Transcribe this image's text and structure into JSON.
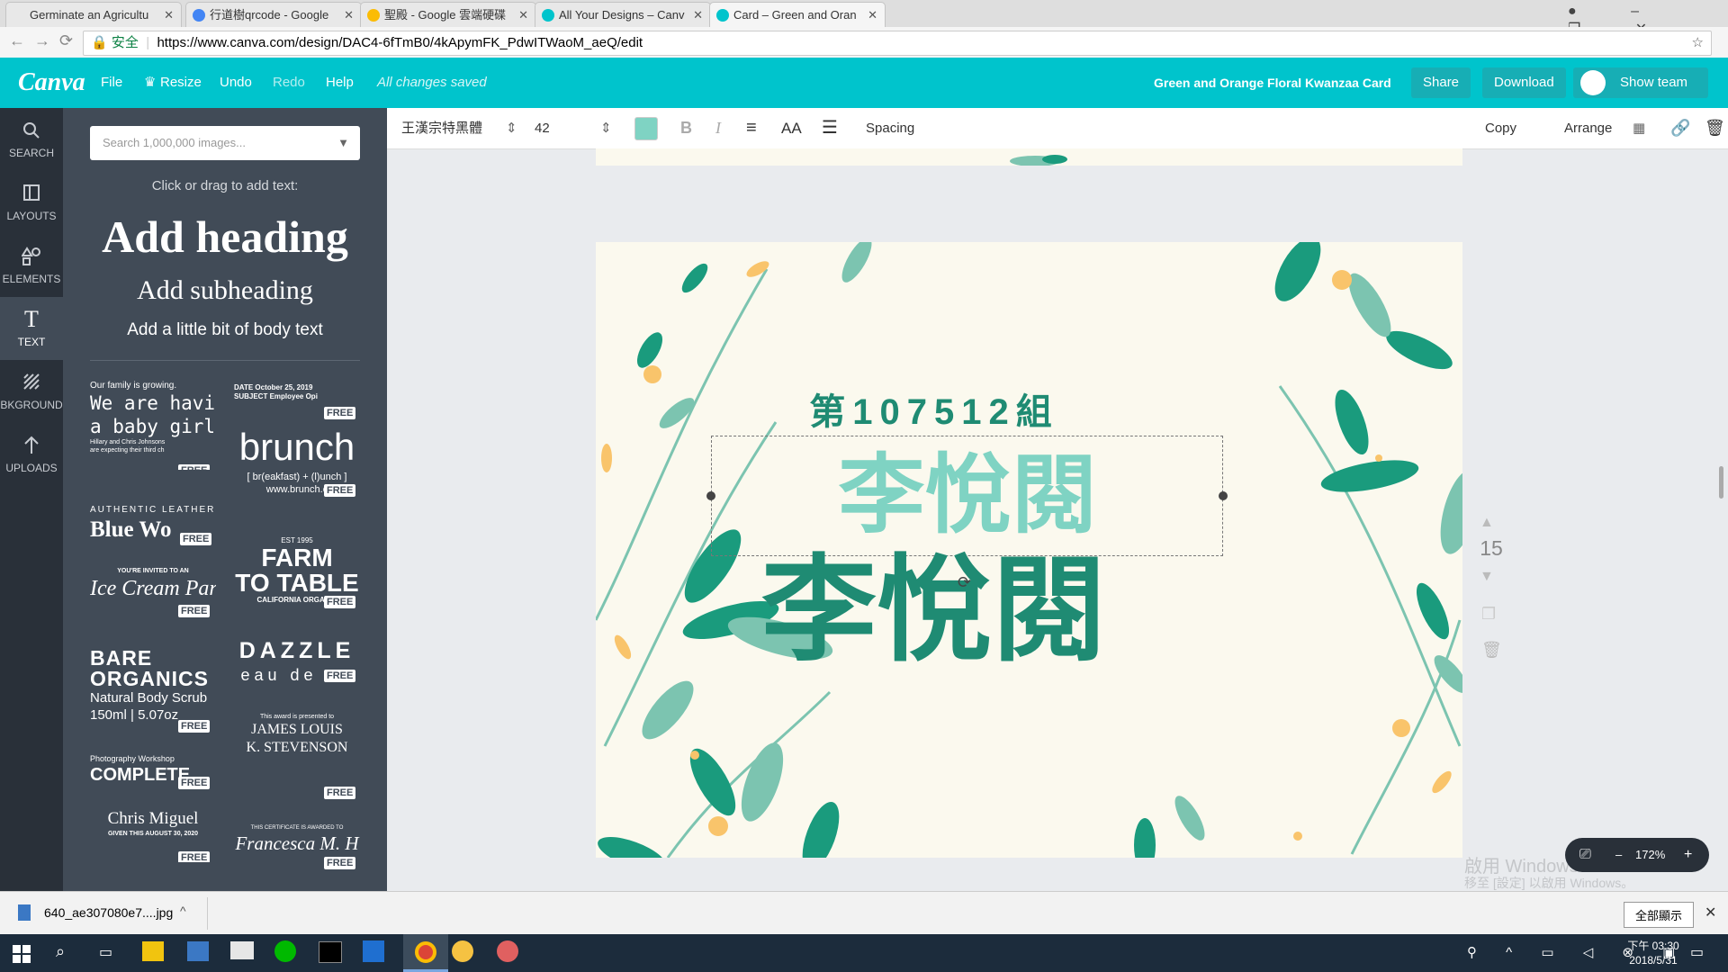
{
  "tabs": [
    "Germinate an Agricultu",
    "行道樹qrcode - Google",
    "聖殿 - Google 雲端硬碟",
    "All Your Designs – Canv",
    "Card – Green and Oran"
  ],
  "address": {
    "secure": "安全",
    "url": "https://www.canva.com/design/DAC4-6fTmB0/4kApymFK_PdwITWaoM_aeQ/edit"
  },
  "header": {
    "logo": "Canva",
    "menu": [
      "File",
      "Resize",
      "Undo",
      "Redo",
      "Help"
    ],
    "status": "All changes saved",
    "design_title": "Green and Orange Floral Kwanzaa Card",
    "share": "Share",
    "download": "Download",
    "show_team": "Show team"
  },
  "toolbar": {
    "font": "王漢宗特黑體",
    "size": "42",
    "spacing": "Spacing",
    "copy": "Copy",
    "arrange": "Arrange"
  },
  "sidebar": [
    "SEARCH",
    "LAYOUTS",
    "ELEMENTS",
    "TEXT",
    "BKGROUND",
    "UPLOADS"
  ],
  "panel": {
    "search_placeholder": "Search 1,000,000 images...",
    "hint": "Click or drag to add text:",
    "heading": "Add heading",
    "subheading": "Add subheading",
    "body": "Add a little bit of body text",
    "free": "FREE",
    "templates": [
      {
        "lines": [
          "Our family is growing.",
          "We are having",
          "a baby girl!",
          "Hillary and Chris Johnsons",
          "are expecting their third ch"
        ]
      },
      {
        "lines": [
          "DATE    October 25, 2019",
          "SUBJECT  Employee Opi"
        ]
      },
      {
        "lines": [
          "brunch",
          "[ br(eakfast) + (l)unch ]",
          "www.brunch.c"
        ]
      },
      {
        "lines": [
          "AUTHENTIC LEATHER",
          "Blue Wo"
        ]
      },
      {
        "lines": [
          "EST 1995",
          "FARM",
          "TO TABLE",
          "CALIFORNIA ORGANIC"
        ]
      },
      {
        "lines": [
          "YOU'RE INVITED TO AN",
          "Ice Cream Party"
        ]
      },
      {
        "lines": [
          "DAZZLE",
          "eau de pa"
        ]
      },
      {
        "lines": [
          "BARE",
          "ORGANICS",
          "Natural Body Scrub",
          "150ml | 5.07oz"
        ]
      },
      {
        "lines": [
          "This award is presented to",
          "JAMES LOUIS",
          "K. STEVENSON"
        ]
      },
      {
        "lines": [
          "Photography Workshop",
          "COMPLETE"
        ]
      },
      {
        "lines": [
          "Chris Miguel",
          "GIVEN THIS AUGUST 30, 2020"
        ]
      },
      {
        "lines": [
          "THIS CERTIFICATE IS AWARDED TO",
          "Francesca M. H"
        ]
      }
    ]
  },
  "card": {
    "group": "第107512組",
    "name_selected": "李悅閱",
    "name": "李悅閱"
  },
  "page_number": "15",
  "zoom": "172%",
  "watermark": [
    "啟用 Windows",
    "移至 [設定] 以啟用 Windows。"
  ],
  "download_bar": {
    "file": "640_ae307080e7....jpg",
    "show_all": "全部顯示"
  },
  "taskbar": {
    "time": "下午 03:30",
    "date": "2018/5/31"
  }
}
